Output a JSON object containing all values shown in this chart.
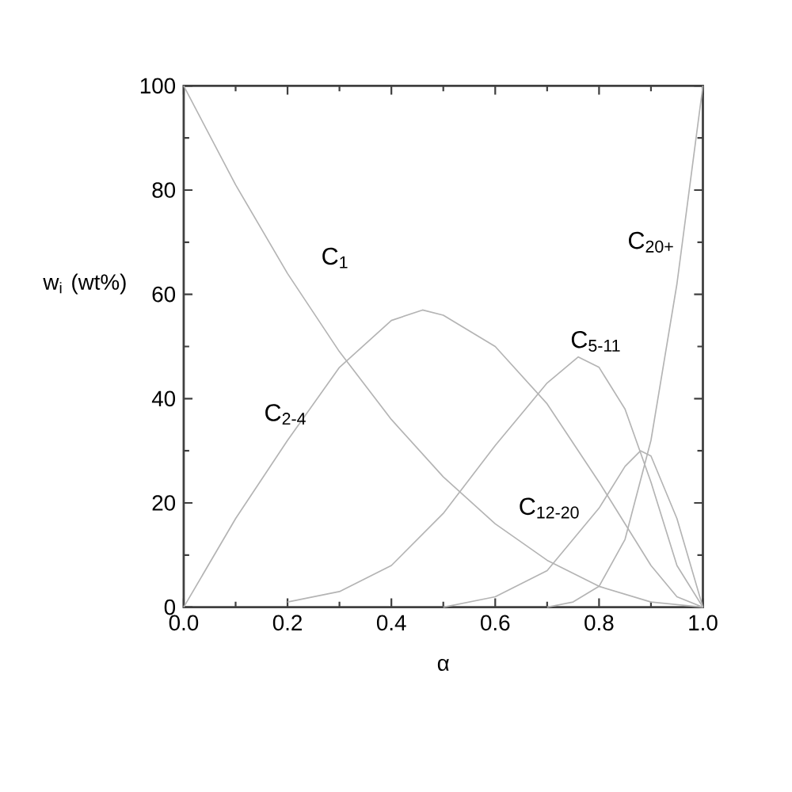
{
  "chart_data": {
    "type": "line",
    "xlabel": "α",
    "ylabel": "w$_{i}$ (wt%)",
    "xlim": [
      0,
      1
    ],
    "ylim": [
      0,
      100
    ],
    "xticks": [
      {
        "value": 0,
        "label": "0.0"
      },
      {
        "value": 0.2,
        "label": "0.2"
      },
      {
        "value": 0.4,
        "label": "0.4"
      },
      {
        "value": 0.6,
        "label": "0.6"
      },
      {
        "value": 0.8,
        "label": "0.8"
      },
      {
        "value": 1,
        "label": "1.0"
      }
    ],
    "yticks": [
      0,
      20,
      40,
      60,
      80,
      100
    ],
    "grid": false,
    "legend": false,
    "marker": "none",
    "line_style": "solid",
    "series": [
      {
        "name": "C$_{1}$",
        "color": "#b4b4b4",
        "x": [
          0,
          0.1,
          0.2,
          0.3,
          0.4,
          0.5,
          0.6,
          0.7,
          0.8,
          0.9,
          1.0
        ],
        "values": [
          100,
          81,
          64,
          49,
          36,
          25,
          16,
          9,
          4,
          1,
          0
        ]
      },
      {
        "name": "C$_{2-4}$",
        "color": "#b4b4b4",
        "x": [
          0,
          0.1,
          0.2,
          0.3,
          0.4,
          0.46,
          0.5,
          0.6,
          0.7,
          0.8,
          0.9,
          0.95,
          1.0
        ],
        "values": [
          0,
          17,
          32,
          46,
          55,
          57,
          56,
          50,
          39,
          24,
          8,
          2,
          0
        ]
      },
      {
        "name": "C$_{5-11}$",
        "color": "#b4b4b4",
        "x": [
          0.2,
          0.3,
          0.4,
          0.5,
          0.6,
          0.7,
          0.76,
          0.8,
          0.85,
          0.9,
          0.95,
          1.0
        ],
        "values": [
          1,
          3,
          8,
          18,
          31,
          43,
          48,
          46,
          38,
          24,
          8,
          0
        ]
      },
      {
        "name": "C$_{12-20}$",
        "color": "#b4b4b4",
        "x": [
          0.5,
          0.6,
          0.7,
          0.8,
          0.85,
          0.88,
          0.9,
          0.95,
          1.0
        ],
        "values": [
          0,
          2,
          7,
          19,
          27,
          30,
          29,
          17,
          0
        ]
      },
      {
        "name": "C$_{20+}$",
        "color": "#b4b4b4",
        "x": [
          0.7,
          0.75,
          0.8,
          0.85,
          0.9,
          0.95,
          1.0
        ],
        "values": [
          0,
          1,
          4,
          13,
          32,
          62,
          100
        ]
      }
    ]
  }
}
